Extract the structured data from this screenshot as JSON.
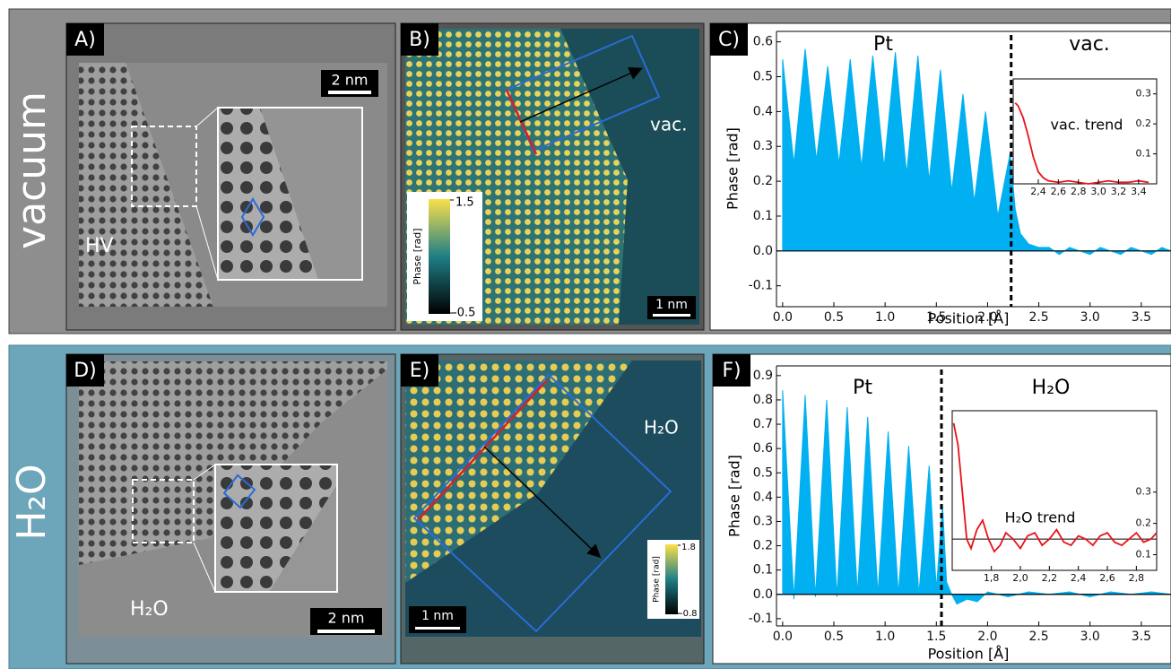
{
  "row_labels": [
    "vacuum",
    "H₂O"
  ],
  "panels": [
    {
      "label": "A)",
      "annotation": "HV",
      "scale_bar": "2 nm"
    },
    {
      "label": "B)",
      "annotation": "vac.",
      "scale_bar": "1 nm",
      "colorbar": {
        "title": "Phase [rad]",
        "ticks": [
          1.5,
          -0.5
        ]
      }
    },
    {
      "label": "C)"
    },
    {
      "label": "D)",
      "annotation": "H₂O",
      "scale_bar": "2 nm"
    },
    {
      "label": "E)",
      "annotation": "H₂O",
      "scale_bar": "1 nm",
      "colorbar": {
        "title": "Phase [rad]",
        "ticks": [
          1.8,
          -0.8
        ]
      }
    },
    {
      "label": "F)"
    }
  ],
  "chart_data": [
    {
      "type": "area",
      "xlabel": "Position [Å]",
      "ylabel": "Phase [rad]",
      "annotations": [
        "Pt",
        "vac."
      ],
      "color": "#00b0f0",
      "divider_x": 2.23,
      "x": [
        0,
        0.11,
        0.22,
        0.33,
        0.44,
        0.55,
        0.66,
        0.77,
        0.88,
        0.99,
        1.1,
        1.21,
        1.32,
        1.43,
        1.54,
        1.65,
        1.76,
        1.87,
        1.98,
        2.1,
        2.22,
        2.27,
        2.32,
        2.4,
        2.5,
        2.6,
        2.7,
        2.8,
        2.9,
        3.0,
        3.1,
        3.2,
        3.3,
        3.4,
        3.5,
        3.6,
        3.7,
        3.79
      ],
      "values": [
        0.55,
        0.25,
        0.58,
        0.26,
        0.53,
        0.25,
        0.55,
        0.24,
        0.56,
        0.24,
        0.57,
        0.22,
        0.56,
        0.2,
        0.52,
        0.17,
        0.45,
        0.14,
        0.4,
        0.1,
        0.28,
        0.12,
        0.05,
        0.02,
        0.01,
        0.01,
        -0.01,
        0.01,
        0,
        -0.01,
        0.01,
        0,
        -0.01,
        0.01,
        0,
        -0.01,
        0.01,
        0
      ],
      "xlim": [
        -0.06,
        3.79
      ],
      "ylim": [
        -0.16,
        0.63
      ],
      "xticks": [
        {
          "value": 0,
          "label": "0.0"
        },
        0.5,
        {
          "value": 1,
          "label": "1.0"
        },
        1.5,
        {
          "value": 2,
          "label": "2.0"
        },
        2.5,
        {
          "value": 3,
          "label": "3.0"
        },
        3.5
      ],
      "yticks": [
        -0.1,
        {
          "value": 0,
          "label": "0.0"
        },
        0.1,
        0.2,
        0.3,
        0.4,
        0.5,
        0.6
      ]
    },
    {
      "type": "line",
      "annotations": [
        "vac. trend"
      ],
      "color": "#e8121a",
      "x": [
        2.17,
        2.2,
        2.25,
        2.3,
        2.35,
        2.4,
        2.45,
        2.5,
        2.6,
        2.7,
        2.8,
        2.9,
        3.0,
        3.1,
        3.2,
        3.3,
        3.4,
        3.5
      ],
      "values": [
        0.27,
        0.26,
        0.22,
        0.16,
        0.09,
        0.04,
        0.02,
        0.01,
        0.005,
        0.01,
        0.005,
        0,
        0.005,
        0.01,
        0.005,
        0.005,
        0.01,
        0.005
      ],
      "xlim": [
        2.15,
        3.58
      ],
      "ylim": [
        0,
        0.35
      ],
      "xticks": [
        {
          "value": 2.4,
          "label": "2,4"
        },
        {
          "value": 2.6,
          "label": "2,6"
        },
        {
          "value": 2.8,
          "label": "2,8"
        },
        {
          "value": 3.0,
          "label": "3,0"
        },
        {
          "value": 3.2,
          "label": "3,2"
        },
        {
          "value": 3.4,
          "label": "3,4"
        }
      ],
      "yticks": [
        0.1,
        0.2,
        0.3
      ]
    },
    {
      "type": "area",
      "xlabel": "Position [Å]",
      "ylabel": "Phase [rad]",
      "annotations": [
        "Pt",
        "H₂O"
      ],
      "color": "#00b0f0",
      "divider_x": 1.55,
      "x": [
        0,
        0.11,
        0.22,
        0.32,
        0.43,
        0.53,
        0.63,
        0.73,
        0.83,
        0.93,
        1.03,
        1.13,
        1.23,
        1.33,
        1.43,
        1.5,
        1.56,
        1.6,
        1.65,
        1.7,
        1.8,
        1.9,
        2.0,
        2.2,
        2.4,
        2.6,
        2.8,
        3.0,
        3.2,
        3.4,
        3.6,
        3.79
      ],
      "values": [
        0.84,
        -0.02,
        0.82,
        -0.01,
        0.8,
        -0.01,
        0.77,
        0,
        0.73,
        0,
        0.67,
        0,
        0.61,
        0,
        0.53,
        0.02,
        0.37,
        0.05,
        0,
        -0.04,
        -0.02,
        -0.03,
        0.01,
        -0.01,
        0.01,
        0,
        0.01,
        -0.01,
        0.01,
        0,
        0.01,
        0
      ],
      "xlim": [
        -0.06,
        3.79
      ],
      "ylim": [
        -0.13,
        0.94
      ],
      "xticks": [
        {
          "value": 0,
          "label": "0.0"
        },
        0.5,
        {
          "value": 1,
          "label": "1.0"
        },
        1.5,
        {
          "value": 2,
          "label": "2.0"
        },
        2.5,
        {
          "value": 3,
          "label": "3.0"
        },
        3.5
      ],
      "yticks": [
        -0.1,
        {
          "value": 0,
          "label": "0.0"
        },
        0.1,
        0.2,
        0.3,
        0.4,
        0.5,
        0.6,
        0.7,
        0.8,
        0.9
      ]
    },
    {
      "type": "line",
      "annotations": [
        "H₂O trend"
      ],
      "color": "#e8121a",
      "reference_line": 0.15,
      "x": [
        1.54,
        1.57,
        1.6,
        1.63,
        1.66,
        1.7,
        1.74,
        1.78,
        1.82,
        1.86,
        1.9,
        1.95,
        2.0,
        2.05,
        2.1,
        2.15,
        2.2,
        2.25,
        2.3,
        2.35,
        2.4,
        2.45,
        2.5,
        2.55,
        2.6,
        2.65,
        2.7,
        2.75,
        2.8,
        2.85,
        2.9,
        2.94
      ],
      "values": [
        0.52,
        0.45,
        0.3,
        0.15,
        0.12,
        0.18,
        0.21,
        0.15,
        0.11,
        0.13,
        0.17,
        0.15,
        0.12,
        0.16,
        0.17,
        0.13,
        0.15,
        0.18,
        0.14,
        0.13,
        0.16,
        0.15,
        0.13,
        0.16,
        0.17,
        0.14,
        0.13,
        0.15,
        0.17,
        0.14,
        0.15,
        0.17
      ],
      "xlim": [
        1.53,
        2.94
      ],
      "ylim": [
        0.05,
        0.56
      ],
      "xticks": [
        {
          "value": 1.8,
          "label": "1,8"
        },
        {
          "value": 2.0,
          "label": "2,0"
        },
        {
          "value": 2.2,
          "label": "2,2"
        },
        {
          "value": 2.4,
          "label": "2,4"
        },
        {
          "value": 2.6,
          "label": "2,6"
        },
        {
          "value": 2.8,
          "label": "2,8"
        }
      ],
      "yticks": [
        0.1,
        0.2,
        0.3
      ]
    }
  ]
}
